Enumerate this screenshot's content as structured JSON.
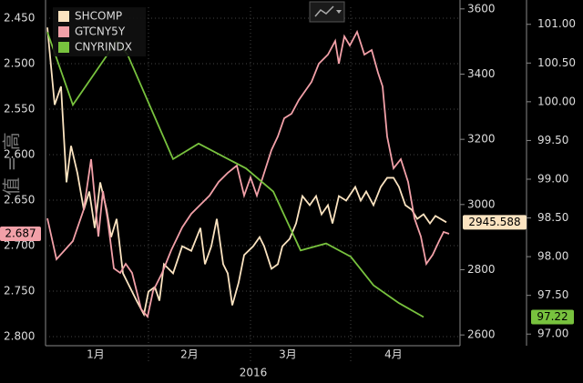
{
  "chart_data": {
    "type": "line",
    "y_axis_label": "值 = 高",
    "xlim": [
      0,
      448
    ],
    "xticks": [
      {
        "value": 55,
        "label": "1月"
      },
      {
        "value": 158,
        "label": "2月"
      },
      {
        "value": 266,
        "label": "3月"
      },
      {
        "value": 382,
        "label": "4月"
      }
    ],
    "month_bounds": [
      113,
      225,
      335
    ],
    "year_label": "2016",
    "ylim": [
      2.438,
      2.81
    ],
    "y_inverted": true,
    "yticks": [
      {
        "value": 2.45,
        "label": "2.450"
      },
      {
        "value": 2.5,
        "label": "2.500"
      },
      {
        "value": 2.55,
        "label": "2.550"
      },
      {
        "value": 2.6,
        "label": "2.600"
      },
      {
        "value": 2.65,
        "label": "2.650"
      },
      {
        "value": 2.7,
        "label": "2.700"
      },
      {
        "value": 2.75,
        "label": "2.750"
      },
      {
        "value": 2.8,
        "label": "2.800"
      }
    ],
    "y2lim": [
      2567,
      3605
    ],
    "y2ticks": [
      2600,
      2800,
      3000,
      3200,
      3400,
      3600
    ],
    "y3lim": [
      96.85,
      101.22
    ],
    "y3ticks": [
      {
        "value": 97,
        "label": "97.00"
      },
      {
        "value": 97.5,
        "label": "97.50"
      },
      {
        "value": 98,
        "label": "98.00"
      },
      {
        "value": 98.5,
        "label": "98.50"
      },
      {
        "value": 99,
        "label": "99.00"
      },
      {
        "value": 99.5,
        "label": "99.50"
      },
      {
        "value": 100,
        "label": "100.00"
      },
      {
        "value": 100.5,
        "label": "100.50"
      },
      {
        "value": 101,
        "label": "101.00"
      }
    ],
    "grid": true,
    "series": [
      {
        "name": "SHCOMP",
        "color": "#fbe3c0",
        "axis": "y2",
        "last_label": "2945.588",
        "x": [
          2,
          10,
          17,
          23,
          28,
          35,
          42,
          48,
          54,
          60,
          67,
          72,
          78,
          85,
          90,
          100,
          108,
          113,
          120,
          125,
          130,
          140,
          150,
          160,
          170,
          175,
          182,
          188,
          195,
          200,
          205,
          212,
          218,
          228,
          235,
          240,
          248,
          255,
          260,
          268,
          275,
          282,
          290,
          297,
          303,
          310,
          315,
          322,
          330,
          340,
          346,
          352,
          360,
          368,
          375,
          382,
          388,
          395,
          402,
          408,
          415,
          422,
          428,
          440
        ],
        "values": [
          3543,
          3306,
          3362,
          3068,
          3180,
          3096,
          2984,
          3040,
          2928,
          3068,
          2984,
          2900,
          2956,
          2789,
          2761,
          2705,
          2663,
          2733,
          2747,
          2705,
          2817,
          2789,
          2872,
          2858,
          2928,
          2817,
          2872,
          2956,
          2817,
          2789,
          2691,
          2761,
          2845,
          2872,
          2900,
          2872,
          2803,
          2817,
          2872,
          2895,
          2942,
          3026,
          2998,
          3026,
          2970,
          2998,
          2942,
          3026,
          3012,
          3054,
          3012,
          3040,
          2998,
          3054,
          3082,
          3082,
          3054,
          2998,
          2984,
          2956,
          2970,
          2942,
          2965,
          2945.588
        ]
      },
      {
        "name": "GTCNY5Y",
        "color": "#f2a0a8",
        "axis": "y",
        "last_label": "2.687",
        "x": [
          2,
          12,
          30,
          42,
          50,
          58,
          63,
          68,
          75,
          82,
          88,
          95,
          105,
          112,
          118,
          128,
          138,
          150,
          160,
          170,
          180,
          190,
          200,
          210,
          218,
          225,
          232,
          240,
          248,
          255,
          262,
          270,
          278,
          285,
          292,
          300,
          310,
          318,
          322,
          328,
          334,
          342,
          350,
          358,
          365,
          370,
          375,
          382,
          390,
          398,
          405,
          412,
          418,
          425,
          432,
          437,
          443
        ],
        "values": [
          2.67,
          2.715,
          2.695,
          2.66,
          2.605,
          2.69,
          2.64,
          2.67,
          2.725,
          2.73,
          2.72,
          2.73,
          2.77,
          2.778,
          2.75,
          2.73,
          2.705,
          2.68,
          2.665,
          2.655,
          2.645,
          2.63,
          2.62,
          2.612,
          2.645,
          2.625,
          2.645,
          2.62,
          2.595,
          2.58,
          2.56,
          2.555,
          2.54,
          2.53,
          2.52,
          2.5,
          2.49,
          2.475,
          2.5,
          2.47,
          2.48,
          2.465,
          2.49,
          2.485,
          2.51,
          2.525,
          2.58,
          2.615,
          2.605,
          2.63,
          2.67,
          2.69,
          2.72,
          2.71,
          2.695,
          2.685,
          2.687
        ]
      },
      {
        "name": "CNYRINDX",
        "color": "#78c23e",
        "axis": "y3",
        "last_label": "97.22",
        "x": [
          2,
          30,
          78,
          90,
          140,
          168,
          220,
          250,
          280,
          308,
          335,
          360,
          388,
          415
        ],
        "values": [
          100.9,
          99.96,
          100.78,
          100.61,
          99.26,
          99.46,
          99.14,
          98.84,
          98.08,
          98.17,
          98.0,
          97.63,
          97.4,
          97.22
        ]
      }
    ]
  }
}
